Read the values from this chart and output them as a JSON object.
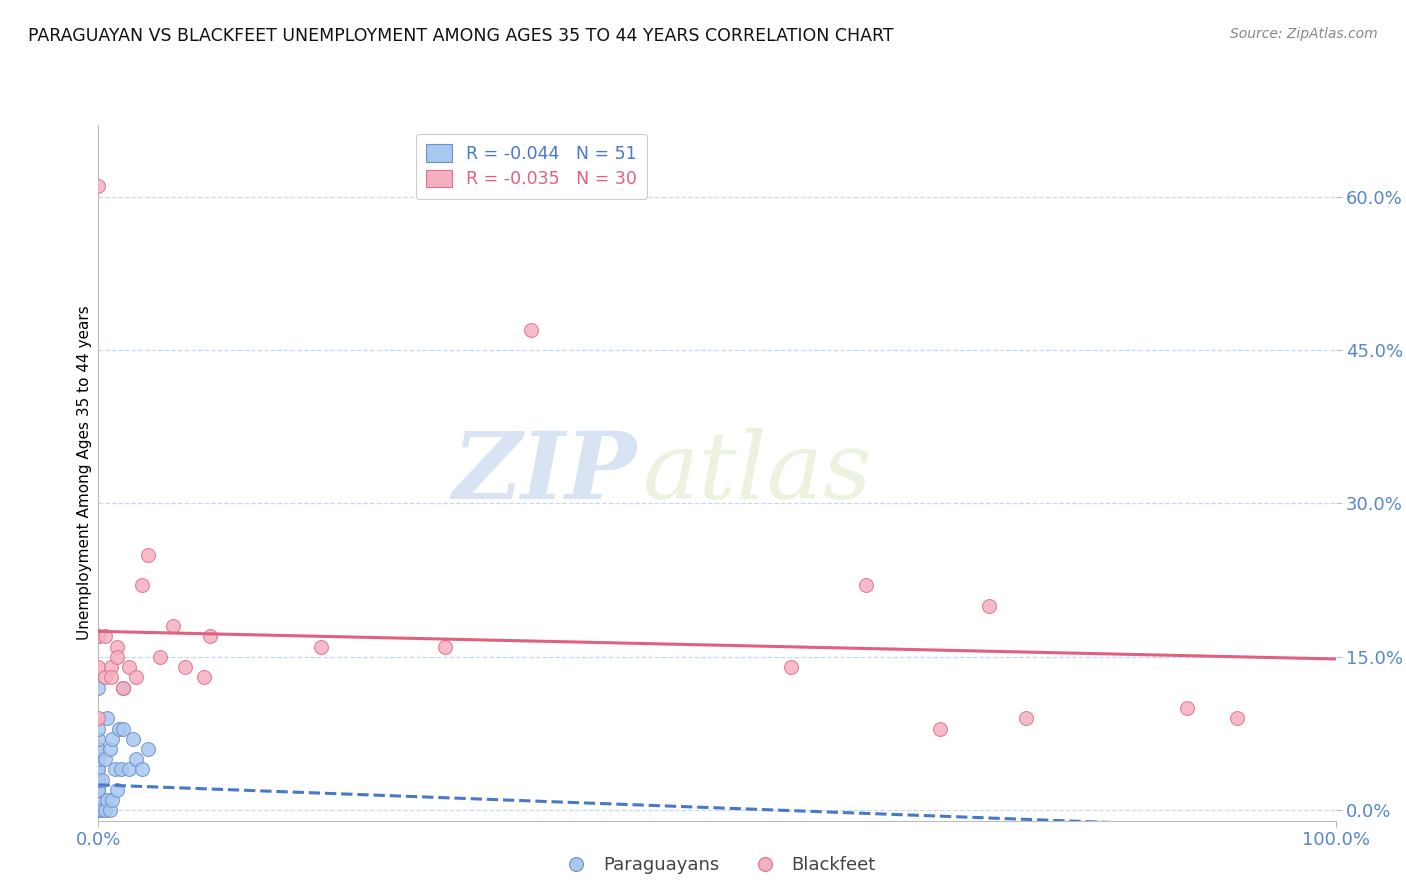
{
  "title": "PARAGUAYAN VS BLACKFEET UNEMPLOYMENT AMONG AGES 35 TO 44 YEARS CORRELATION CHART",
  "source": "Source: ZipAtlas.com",
  "ylabel": "Unemployment Among Ages 35 to 44 years",
  "ytick_labels": [
    "0.0%",
    "15.0%",
    "30.0%",
    "45.0%",
    "60.0%"
  ],
  "ytick_values": [
    0.0,
    0.15,
    0.3,
    0.45,
    0.6
  ],
  "xlim": [
    0.0,
    1.0
  ],
  "ylim": [
    -0.01,
    0.67
  ],
  "legend_label1": "Paraguayans",
  "legend_label2": "Blackfeet",
  "r1": "-0.044",
  "n1": "51",
  "r2": "-0.035",
  "n2": "30",
  "color1": "#a8c8f0",
  "color2": "#f5b0c0",
  "color1_edge": "#7090c8",
  "color2_edge": "#e07090",
  "trend1_color": "#4878c8",
  "trend2_color": "#e06080",
  "background": "#ffffff",
  "grid_color": "#c8d8ec",
  "title_color": "#111111",
  "source_color": "#888888",
  "tick_color": "#5588cc",
  "paraguayan_x": [
    0.0,
    0.0,
    0.0,
    0.0,
    0.0,
    0.0,
    0.0,
    0.0,
    0.0,
    0.0,
    0.0,
    0.0,
    0.0,
    0.0,
    0.0,
    0.0,
    0.0,
    0.0,
    0.0,
    0.0,
    0.0,
    0.0,
    0.0,
    0.0,
    0.0,
    0.0,
    0.0,
    0.0,
    0.0,
    0.0,
    0.003,
    0.003,
    0.005,
    0.005,
    0.007,
    0.007,
    0.009,
    0.009,
    0.011,
    0.011,
    0.013,
    0.015,
    0.017,
    0.018,
    0.02,
    0.02,
    0.025,
    0.028,
    0.03,
    0.035,
    0.04
  ],
  "paraguayan_y": [
    0.0,
    0.0,
    0.0,
    0.0,
    0.0,
    0.0,
    0.0,
    0.0,
    0.0,
    0.0,
    0.0,
    0.0,
    0.01,
    0.01,
    0.01,
    0.02,
    0.02,
    0.02,
    0.03,
    0.03,
    0.04,
    0.04,
    0.05,
    0.05,
    0.06,
    0.06,
    0.07,
    0.08,
    0.17,
    0.12,
    0.0,
    0.03,
    0.0,
    0.05,
    0.01,
    0.09,
    0.0,
    0.06,
    0.01,
    0.07,
    0.04,
    0.02,
    0.08,
    0.04,
    0.08,
    0.12,
    0.04,
    0.07,
    0.05,
    0.04,
    0.06
  ],
  "blackfeet_x": [
    0.0,
    0.0,
    0.0,
    0.0,
    0.005,
    0.005,
    0.01,
    0.01,
    0.015,
    0.015,
    0.02,
    0.025,
    0.03,
    0.035,
    0.04,
    0.05,
    0.06,
    0.07,
    0.085,
    0.09,
    0.18,
    0.28,
    0.35,
    0.56,
    0.62,
    0.68,
    0.72,
    0.75,
    0.88,
    0.92
  ],
  "blackfeet_y": [
    0.61,
    0.14,
    0.17,
    0.09,
    0.17,
    0.13,
    0.14,
    0.13,
    0.16,
    0.15,
    0.12,
    0.14,
    0.13,
    0.22,
    0.25,
    0.15,
    0.18,
    0.14,
    0.13,
    0.17,
    0.16,
    0.16,
    0.47,
    0.14,
    0.22,
    0.08,
    0.2,
    0.09,
    0.1,
    0.09
  ],
  "watermark_text": "ZIP",
  "watermark_text2": "atlas",
  "par_trend_x": [
    0.0,
    1.0
  ],
  "par_trend_y": [
    0.025,
    -0.02
  ],
  "blk_trend_x": [
    0.0,
    1.0
  ],
  "blk_trend_y": [
    0.175,
    0.148
  ]
}
